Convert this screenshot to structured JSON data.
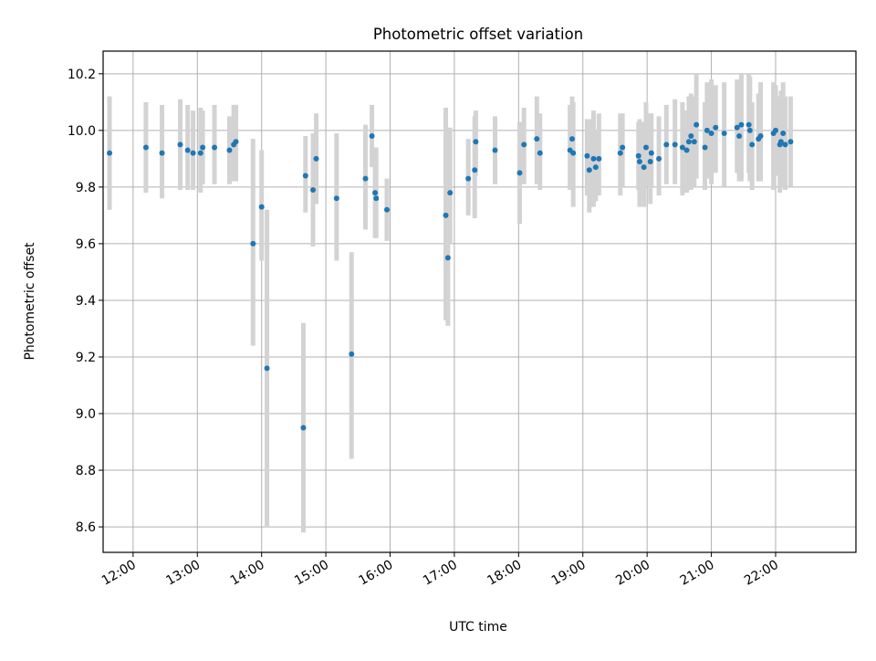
{
  "chart_data": {
    "type": "scatter",
    "title": "Photometric offset variation",
    "xlabel": "UTC time",
    "ylabel": "Photometric offset",
    "x_ticks": [
      "12:00",
      "13:00",
      "14:00",
      "15:00",
      "16:00",
      "17:00",
      "18:00",
      "19:00",
      "20:00",
      "21:00",
      "22:00"
    ],
    "y_ticks": [
      "8.6",
      "8.8",
      "9.0",
      "9.2",
      "9.4",
      "9.6",
      "9.8",
      "10.0",
      "10.2"
    ],
    "xlim": [
      "11:32",
      "23:15"
    ],
    "ylim": [
      8.51,
      10.28
    ],
    "grid": true,
    "colors": {
      "points": "#1f77b4",
      "errorbars": "#d3d3d3",
      "grid": "#b0b0b0"
    },
    "series": [
      {
        "x": [
          "11:38",
          "12:12",
          "12:27",
          "12:44",
          "12:51",
          "12:56",
          "13:03",
          "13:05",
          "13:16",
          "13:30",
          "13:34",
          "13:36",
          "13:52",
          "14:00",
          "14:05",
          "14:39",
          "14:41",
          "14:48",
          "14:51",
          "15:10",
          "15:24",
          "15:37",
          "15:43",
          "15:46",
          "15:47",
          "15:57",
          "16:52",
          "16:54",
          "16:56",
          "17:13",
          "17:19",
          "17:20",
          "17:38",
          "18:01",
          "18:05",
          "18:17",
          "18:20",
          "18:48",
          "18:50",
          "18:51",
          "19:04",
          "19:06",
          "19:10",
          "19:12",
          "19:15",
          "19:35",
          "19:37",
          "19:52",
          "19:53",
          "19:57",
          "19:59",
          "20:03",
          "20:04",
          "20:11",
          "20:18",
          "20:26",
          "20:33",
          "20:37",
          "20:39",
          "20:41",
          "20:44",
          "20:46",
          "20:54",
          "20:56",
          "21:00",
          "21:04",
          "21:12",
          "21:24",
          "21:26",
          "21:28",
          "21:35",
          "21:36",
          "21:38",
          "21:44",
          "21:46",
          "21:58",
          "22:00",
          "22:04",
          "22:05",
          "22:07",
          "22:09",
          "22:14"
        ],
        "y": [
          9.92,
          9.94,
          9.92,
          9.95,
          9.93,
          9.92,
          9.92,
          9.94,
          9.94,
          9.93,
          9.95,
          9.96,
          9.6,
          9.73,
          9.16,
          8.95,
          9.84,
          9.79,
          9.9,
          9.76,
          9.21,
          9.83,
          9.98,
          9.78,
          9.76,
          9.72,
          9.7,
          9.55,
          9.78,
          9.83,
          9.86,
          9.96,
          9.93,
          9.85,
          9.95,
          9.97,
          9.92,
          9.93,
          9.97,
          9.92,
          9.91,
          9.86,
          9.9,
          9.87,
          9.9,
          9.92,
          9.94,
          9.91,
          9.89,
          9.87,
          9.94,
          9.89,
          9.92,
          9.9,
          9.95,
          9.95,
          9.94,
          9.93,
          9.96,
          9.98,
          9.96,
          10.02,
          9.94,
          10.0,
          9.99,
          10.01,
          9.99,
          10.01,
          9.98,
          10.02,
          10.02,
          10.0,
          9.95,
          9.97,
          9.98,
          9.99,
          10.0,
          9.95,
          9.96,
          9.99,
          9.95,
          9.96
        ],
        "y_low": [
          9.72,
          9.78,
          9.76,
          9.79,
          9.79,
          9.79,
          9.78,
          9.81,
          9.81,
          9.81,
          9.82,
          9.82,
          9.24,
          9.54,
          8.6,
          8.58,
          9.71,
          9.59,
          9.74,
          9.54,
          8.84,
          9.65,
          9.87,
          9.62,
          9.62,
          9.61,
          9.33,
          9.31,
          9.6,
          9.7,
          9.69,
          9.84,
          9.81,
          9.67,
          9.81,
          9.81,
          9.79,
          9.79,
          9.85,
          9.73,
          9.77,
          9.71,
          9.73,
          9.75,
          9.77,
          9.77,
          9.8,
          9.79,
          9.73,
          9.73,
          9.8,
          9.74,
          9.8,
          9.77,
          9.81,
          9.81,
          9.77,
          9.78,
          9.8,
          9.79,
          9.8,
          9.83,
          9.79,
          9.83,
          9.81,
          9.85,
          9.8,
          9.85,
          9.82,
          9.82,
          9.85,
          9.82,
          9.79,
          9.82,
          9.82,
          9.79,
          9.84,
          9.78,
          9.81,
          9.8,
          9.79,
          9.8
        ],
        "y_high": [
          10.12,
          10.1,
          10.09,
          10.11,
          10.09,
          10.07,
          10.08,
          10.07,
          10.09,
          10.05,
          10.09,
          10.09,
          9.97,
          9.93,
          9.72,
          9.32,
          9.98,
          9.99,
          10.06,
          9.99,
          9.57,
          10.02,
          10.09,
          9.94,
          9.94,
          9.83,
          10.08,
          9.8,
          10.01,
          9.97,
          10.05,
          10.07,
          10.05,
          10.03,
          10.08,
          10.12,
          10.06,
          10.09,
          10.12,
          10.1,
          10.04,
          10.04,
          10.07,
          10.0,
          10.06,
          10.06,
          10.06,
          10.03,
          10.04,
          10.03,
          10.1,
          10.06,
          10.06,
          10.05,
          10.09,
          10.11,
          10.1,
          10.07,
          10.12,
          10.13,
          10.12,
          10.2,
          10.1,
          10.17,
          10.18,
          10.16,
          10.17,
          10.18,
          10.14,
          10.2,
          10.2,
          10.19,
          10.1,
          10.13,
          10.17,
          10.17,
          10.16,
          10.12,
          10.14,
          10.17,
          10.12,
          10.12
        ]
      }
    ]
  }
}
